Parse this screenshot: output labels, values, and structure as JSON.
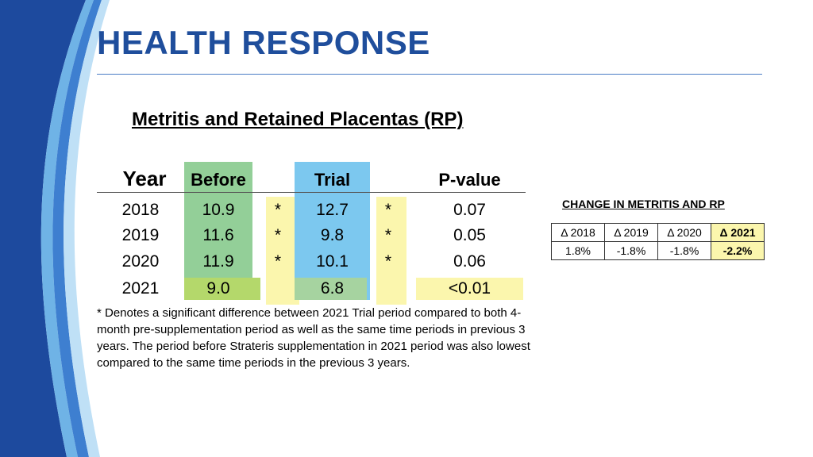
{
  "title": "HEALTH RESPONSE",
  "subtitle": "Metritis and Retained Placentas (RP)",
  "table": {
    "headers": {
      "year": "Year",
      "before": "Before",
      "trial": "Trial",
      "p": "P-value"
    },
    "rows": [
      {
        "year": "2018",
        "before": "10.9",
        "star1": "*",
        "trial": "12.7",
        "star2": "*",
        "p": "0.07"
      },
      {
        "year": "2019",
        "before": "11.6",
        "star1": "*",
        "trial": "9.8",
        "star2": "*",
        "p": "0.05"
      },
      {
        "year": "2020",
        "before": "11.9",
        "star1": "*",
        "trial": "10.1",
        "star2": "*",
        "p": "0.06"
      },
      {
        "year": "2021",
        "before": "9.0",
        "star1": "",
        "trial": "6.8",
        "star2": "",
        "p": "<0.01"
      }
    ]
  },
  "footnote": "* Denotes a significant difference between 2021 Trial period compared to both 4-month pre-supplementation period as well as the same time periods in previous 3 years. The period before Strateris supplementation in 2021 period was also lowest compared to the same time periods in the previous 3 years.",
  "change": {
    "title": "CHANGE IN METRITIS AND RP",
    "headers": [
      "Δ 2018",
      "Δ 2019",
      "Δ 2020",
      "Δ 2021"
    ],
    "values": [
      "1.8%",
      "-1.8%",
      "-1.8%",
      "-2.2%"
    ]
  },
  "colors": {
    "title": "#1f4e9c",
    "before_bg": "#93cf98",
    "trial_bg": "#7cc8ef",
    "highlight_yellow": "#fbf6ad"
  }
}
